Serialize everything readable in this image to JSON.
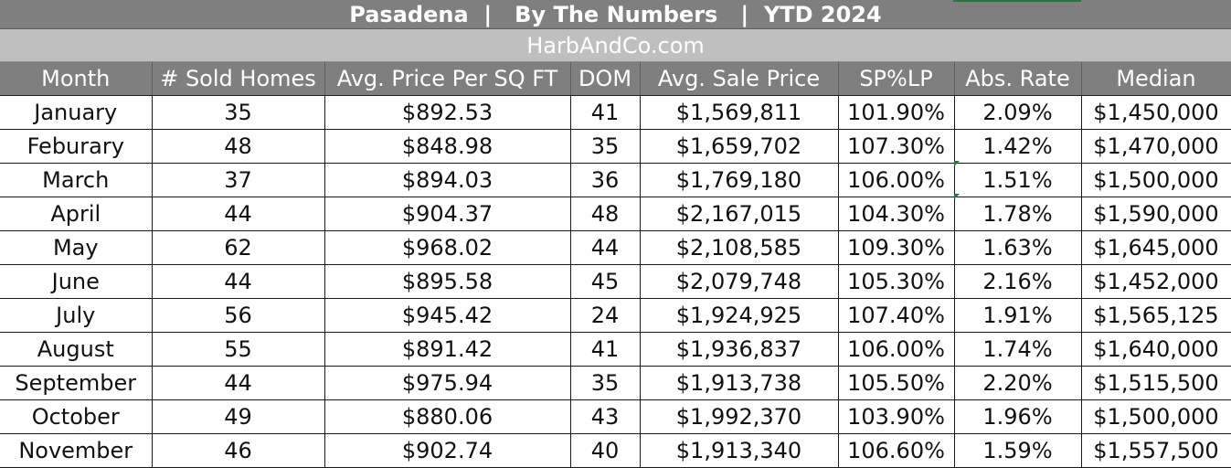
{
  "title": "Pasadena  |   By The Numbers   |  YTD 2024",
  "subtitle": "HarbAndCo.com",
  "headers": [
    "Month",
    "# Sold Homes",
    "Avg. Price Per SQ FT",
    "DOM",
    "Avg. Sale Price",
    "SP%LP",
    "Abs. Rate",
    "Median"
  ],
  "rows": [
    [
      "January",
      "35",
      "$892.53",
      "41",
      "$1,569,811",
      "101.90%",
      "2.09%",
      "$1,450,000"
    ],
    [
      "Feburary",
      "48",
      "$848.98",
      "35",
      "$1,659,702",
      "107.30%",
      "1.42%",
      "$1,470,000"
    ],
    [
      "March",
      "37",
      "$894.03",
      "36",
      "$1,769,180",
      "106.00%",
      "1.51%",
      "$1,500,000"
    ],
    [
      "April",
      "44",
      "$904.37",
      "48",
      "$2,167,015",
      "104.30%",
      "1.78%",
      "$1,590,000"
    ],
    [
      "May",
      "62",
      "$968.02",
      "44",
      "$2,108,585",
      "109.30%",
      "1.63%",
      "$1,645,000"
    ],
    [
      "June",
      "44",
      "$895.58",
      "45",
      "$2,079,748",
      "105.30%",
      "2.16%",
      "$1,452,000"
    ],
    [
      "July",
      "56",
      "$945.42",
      "24",
      "$1,924,925",
      "107.40%",
      "1.91%",
      "$1,565,125"
    ],
    [
      "August",
      "55",
      "$891.42",
      "41",
      "$1,936,837",
      "106.00%",
      "1.74%",
      "$1,640,000"
    ],
    [
      "September",
      "44",
      "$975.94",
      "35",
      "$1,913,738",
      "105.50%",
      "2.20%",
      "$1,515,500"
    ],
    [
      "October",
      "49",
      "$880.06",
      "43",
      "$1,992,370",
      "103.90%",
      "1.96%",
      "$1,500,000"
    ],
    [
      "November",
      "46",
      "$902.74",
      "40",
      "$1,913,340",
      "106.60%",
      "1.59%",
      "$1,557,500"
    ]
  ],
  "colors": {
    "header_bg": "#7f7f7f",
    "subtitle_bg": "#bfbfbf",
    "grid_line": "#1a1a1a",
    "cell_note_marker": "#1e7a3a"
  }
}
